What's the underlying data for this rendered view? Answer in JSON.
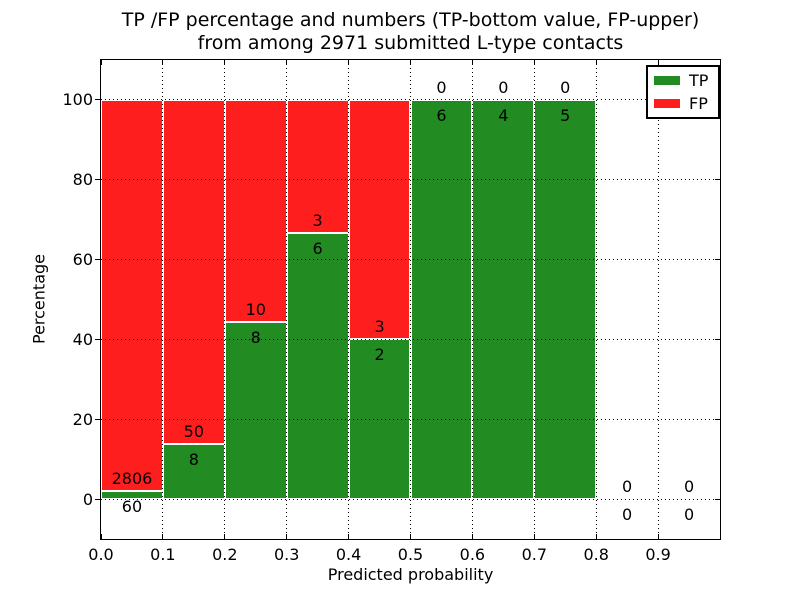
{
  "chart_data": {
    "type": "bar",
    "stacked": true,
    "normalized_to_percent": true,
    "title": "TP /FP percentage and numbers (TP-bottom value, FP-upper)",
    "subtitle": "from among 2971 submitted L-type contacts",
    "xlabel": "Predicted probability",
    "ylabel": "Percentage",
    "xlim": [
      0.0,
      1.0
    ],
    "ylim": [
      -10,
      110
    ],
    "grid": "dotted, both axes, drawn over bars",
    "xtick_values": [
      0.0,
      0.1,
      0.2,
      0.3,
      0.4,
      0.5,
      0.6,
      0.7,
      0.8,
      0.9
    ],
    "xtick_labels": [
      "0.0",
      "0.1",
      "0.2",
      "0.3",
      "0.4",
      "0.5",
      "0.6",
      "0.7",
      "0.8",
      "0.9"
    ],
    "ytick_values": [
      0,
      20,
      40,
      60,
      80,
      100
    ],
    "ytick_labels": [
      "0",
      "20",
      "40",
      "60",
      "80",
      "100"
    ],
    "colors": {
      "tp": "#228B22",
      "fp": "#FF1E1E"
    },
    "legend": {
      "position": "upper right",
      "items": [
        {
          "label": "TP",
          "color": "#228B22"
        },
        {
          "label": "FP",
          "color": "#FF1E1E"
        }
      ]
    },
    "bins": [
      {
        "range": [
          0.0,
          0.1
        ],
        "tp": 60,
        "fp": 2806
      },
      {
        "range": [
          0.1,
          0.2
        ],
        "tp": 8,
        "fp": 50
      },
      {
        "range": [
          0.2,
          0.3
        ],
        "tp": 8,
        "fp": 10
      },
      {
        "range": [
          0.3,
          0.4
        ],
        "tp": 6,
        "fp": 3
      },
      {
        "range": [
          0.4,
          0.5
        ],
        "tp": 2,
        "fp": 3
      },
      {
        "range": [
          0.5,
          0.6
        ],
        "tp": 6,
        "fp": 0
      },
      {
        "range": [
          0.6,
          0.7
        ],
        "tp": 4,
        "fp": 0
      },
      {
        "range": [
          0.7,
          0.8
        ],
        "tp": 5,
        "fp": 0
      },
      {
        "range": [
          0.8,
          0.9
        ],
        "tp": 0,
        "fp": 0
      },
      {
        "range": [
          0.9,
          1.0
        ],
        "tp": 0,
        "fp": 0
      }
    ],
    "label_convention": "TP count printed below green/red boundary, FP count printed above it"
  }
}
